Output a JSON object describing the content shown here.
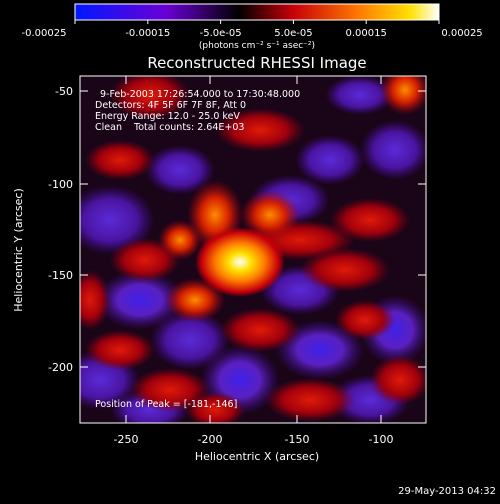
{
  "colorbar": {
    "tick_labels": [
      "-0.00025",
      "-0.00015",
      "-5.0e-05",
      "5.0e-05",
      "0.00015",
      "0.00025"
    ],
    "units": "(photons cm⁻² s⁻¹ asec⁻²)",
    "stops": [
      "#0018ff",
      "#6b00d6",
      "#000000",
      "#c8000a",
      "#ff7a00",
      "#ffe100",
      "#ffffff"
    ]
  },
  "title": "Reconstructed RHESSI Image",
  "annotations": {
    "time": "9-Feb-2003 17:26:54.000 to 17:30:48.000",
    "detectors": "Detectors: 4F 5F 6F 7F 8F, Att 0",
    "energy": "Energy Range: 12.0 - 25.0 keV",
    "clean": "Clean    Total counts: 2.64E+03",
    "peak": "Position of Peak = [-181,-146]"
  },
  "axes": {
    "xlabel": "Heliocentric X (arcsec)",
    "ylabel": "Heliocentric Y (arcsec)",
    "x_ticks": [
      "-250",
      "-200",
      "-150",
      "-100"
    ],
    "y_ticks": [
      "-50",
      "-100",
      "-150",
      "-200"
    ]
  },
  "footer_timestamp": "29-May-2013 04:32"
}
